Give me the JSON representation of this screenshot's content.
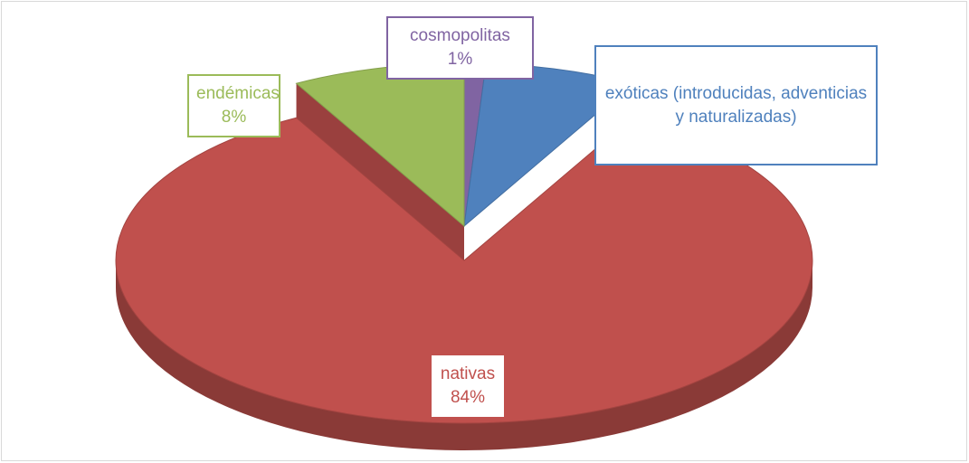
{
  "chart_data": {
    "type": "pie",
    "categories": [
      "cosmopolitas",
      "exóticas (introducidas, adventicias y naturalizadas)",
      "nativas",
      "endémicas"
    ],
    "values": [
      1,
      7,
      84,
      8
    ],
    "value_labels": [
      "1%",
      null,
      "84%",
      "8%"
    ],
    "colors": [
      "#8064a2",
      "#4f81bd",
      "#c0504d",
      "#9bbb59"
    ],
    "exploded": [
      false,
      false,
      true,
      false
    ]
  }
}
